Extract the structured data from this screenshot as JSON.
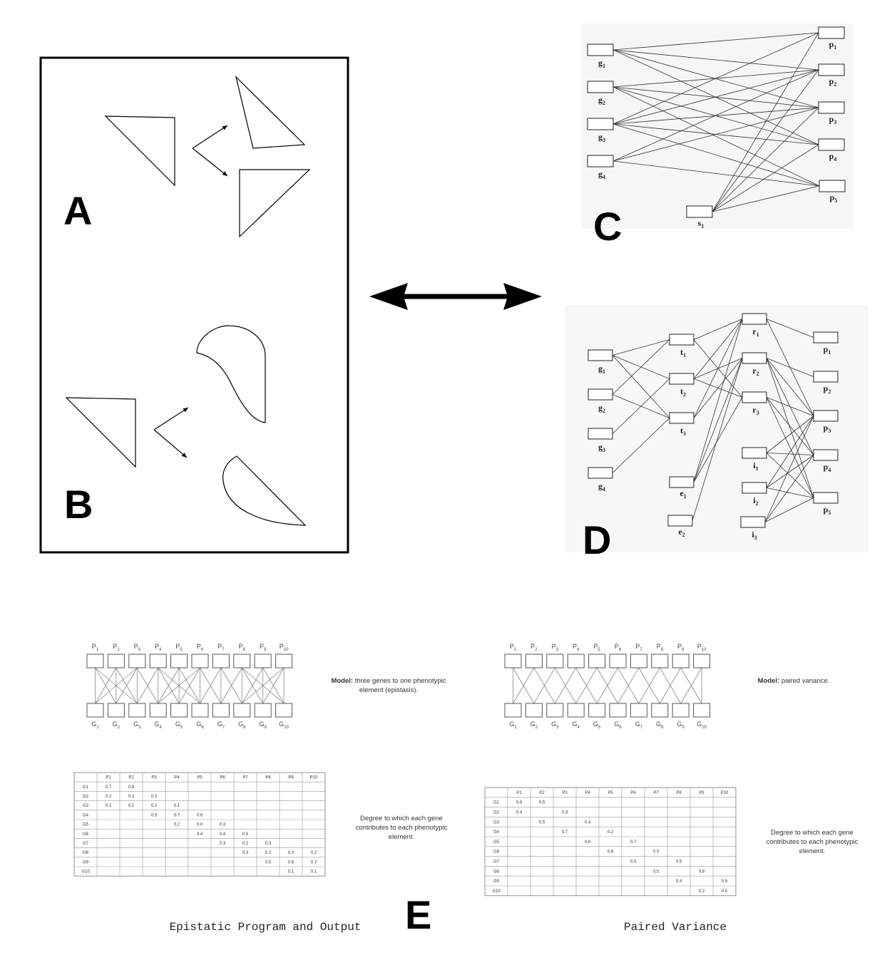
{
  "panels": {
    "a": {
      "letter": "A"
    },
    "b": {
      "letter": "B"
    },
    "c": {
      "letter": "C",
      "left_nodes": [
        [
          "g",
          "1"
        ],
        [
          "g",
          "2"
        ],
        [
          "g",
          "3"
        ],
        [
          "g",
          "4"
        ]
      ],
      "right_nodes": [
        [
          "p",
          "1"
        ],
        [
          "p",
          "2"
        ],
        [
          "p",
          "3"
        ],
        [
          "p",
          "4"
        ],
        [
          "p",
          "5"
        ]
      ],
      "s_node": [
        "s",
        "1"
      ]
    },
    "d": {
      "letter": "D",
      "g_nodes": [
        [
          "g",
          "1"
        ],
        [
          "g",
          "2"
        ],
        [
          "g",
          "3"
        ],
        [
          "g",
          "4"
        ]
      ],
      "t_nodes": [
        [
          "t",
          "1"
        ],
        [
          "t",
          "2"
        ],
        [
          "t",
          "3"
        ]
      ],
      "e_nodes": [
        [
          "e",
          "1"
        ],
        [
          "e",
          "2"
        ]
      ],
      "r_nodes": [
        [
          "r",
          "1"
        ],
        [
          "r",
          "2"
        ],
        [
          "r",
          "3"
        ]
      ],
      "i_nodes": [
        [
          "i",
          "1"
        ],
        [
          "i",
          "2"
        ],
        [
          "i",
          "3"
        ]
      ],
      "p_nodes": [
        [
          "p",
          "1"
        ],
        [
          "p",
          "2"
        ],
        [
          "p",
          "3"
        ],
        [
          "p",
          "4"
        ],
        [
          "p",
          "5"
        ]
      ]
    },
    "e": {
      "letter": "E",
      "left": {
        "caption": "Epistatic Program and Output",
        "model_bold": "Model:",
        "model_text_1": "three genes to one phenotypic",
        "model_text_2": "element (epistasis).",
        "degree_text": [
          "Degree to which each gene",
          "contributes to each phenotypic",
          "element."
        ],
        "table_header": [
          "",
          "P1",
          "P2",
          "P3",
          "P4",
          "P5",
          "P6",
          "P7",
          "P8",
          "P9",
          "P10"
        ],
        "table_rows": [
          [
            "G1",
            "0.7",
            "0.8",
            "",
            "",
            "",
            "",
            "",
            "",
            "",
            ""
          ],
          [
            "G2",
            "0.2",
            "0.1",
            "0.3",
            "",
            "",
            "",
            "",
            "",
            "",
            ""
          ],
          [
            "G3",
            "0.1",
            "0.1",
            "0.2",
            "0.1",
            "",
            "",
            "",
            "",
            "",
            ""
          ],
          [
            "G4",
            "",
            "",
            "0.5",
            "0.7",
            "0.6",
            "",
            "",
            "",
            "",
            ""
          ],
          [
            "G5",
            "",
            "",
            "",
            "0.2",
            "0.0",
            "0.3",
            "",
            "",
            "",
            ""
          ],
          [
            "G6",
            "",
            "",
            "",
            "",
            "0.4",
            "0.4",
            "0.5",
            "",
            "",
            ""
          ],
          [
            "G7",
            "",
            "",
            "",
            "",
            "",
            "0.3",
            "0.2",
            "0.3",
            "",
            ""
          ],
          [
            "G8",
            "",
            "",
            "",
            "",
            "",
            "",
            "0.3",
            "0.2",
            "0.3",
            "0.2"
          ],
          [
            "G9",
            "",
            "",
            "",
            "",
            "",
            "",
            "",
            "0.5",
            "0.6",
            "0.7"
          ],
          [
            "G10",
            "",
            "",
            "",
            "",
            "",
            "",
            "",
            "",
            "0.1",
            "0.1"
          ]
        ]
      },
      "right": {
        "caption": "Paired Variance",
        "model_bold": "Model:",
        "model_text_1": "paired variance.",
        "degree_text": [
          "Degree to which each gene",
          "contributes to each phenotypic",
          "element."
        ],
        "table_header": [
          "",
          "P1",
          "P2",
          "P3",
          "P4",
          "P5",
          "P6",
          "P7",
          "P8",
          "P9",
          "P10"
        ],
        "table_rows": [
          [
            "G1",
            "0.6",
            "0.5",
            "",
            "",
            "",
            "",
            "",
            "",
            "",
            ""
          ],
          [
            "G2",
            "0.4",
            "",
            "0.3",
            "",
            "",
            "",
            "",
            "",
            "",
            ""
          ],
          [
            "G3",
            "",
            "0.5",
            "",
            "0.4",
            "",
            "",
            "",
            "",
            "",
            ""
          ],
          [
            "G4",
            "",
            "",
            "0.7",
            "",
            "0.2",
            "",
            "",
            "",
            "",
            ""
          ],
          [
            "G5",
            "",
            "",
            "",
            "0.6",
            "",
            "0.7",
            "",
            "",
            "",
            ""
          ],
          [
            "G6",
            "",
            "",
            "",
            "",
            "0.8",
            "",
            "0.5",
            "",
            "",
            ""
          ],
          [
            "G7",
            "",
            "",
            "",
            "",
            "",
            "0.3",
            "",
            "0.6",
            "",
            ""
          ],
          [
            "G8",
            "",
            "",
            "",
            "",
            "",
            "",
            "0.5",
            "",
            "0.8",
            ""
          ],
          [
            "G9",
            "",
            "",
            "",
            "",
            "",
            "",
            "",
            "0.4",
            "",
            "0.5"
          ],
          [
            "G10",
            "",
            "",
            "",
            "",
            "",
            "",
            "",
            "",
            "0.2",
            "0.5"
          ]
        ]
      },
      "p_labels": [
        [
          "P",
          "1"
        ],
        [
          "P",
          "2"
        ],
        [
          "P",
          "3"
        ],
        [
          "P",
          "4"
        ],
        [
          "P",
          "5"
        ],
        [
          "P",
          "6"
        ],
        [
          "P",
          "7"
        ],
        [
          "P",
          "8"
        ],
        [
          "P",
          "9"
        ],
        [
          "P",
          "10"
        ]
      ],
      "g_labels": [
        [
          "G",
          "1"
        ],
        [
          "G",
          "2"
        ],
        [
          "G",
          "3"
        ],
        [
          "G",
          "4"
        ],
        [
          "G",
          "5"
        ],
        [
          "G",
          "6"
        ],
        [
          "G",
          "7"
        ],
        [
          "G",
          "8"
        ],
        [
          "G",
          "9"
        ],
        [
          "G",
          "10"
        ]
      ]
    }
  }
}
